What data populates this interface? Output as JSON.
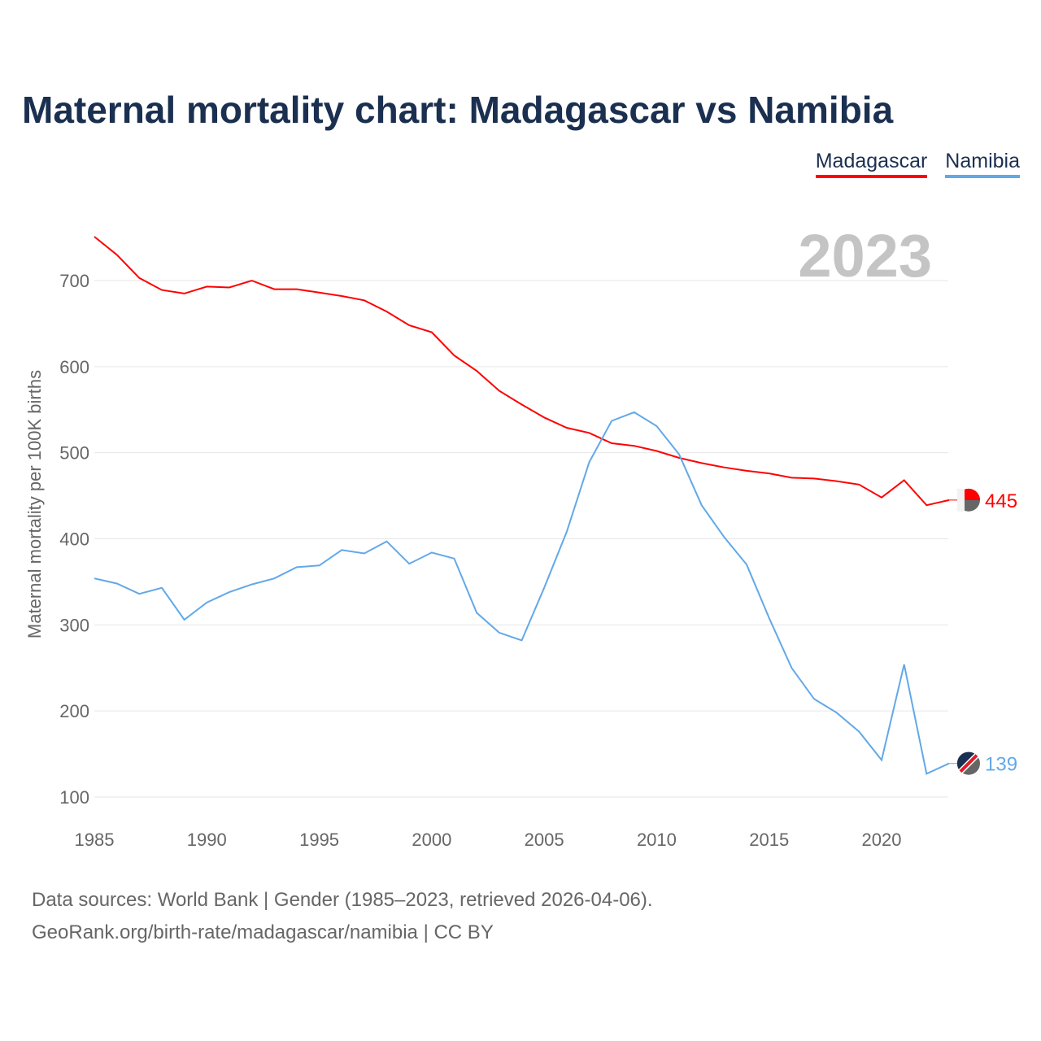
{
  "chart_data": {
    "type": "line",
    "title": "Maternal mortality chart: Madagascar vs Namibia",
    "ylabel": "Maternal mortality per 100K births",
    "xlabel": "",
    "year_label": "2023",
    "xlim": [
      1985,
      2023
    ],
    "ylim": [
      100,
      750
    ],
    "x_ticks": [
      1985,
      1990,
      1995,
      2000,
      2005,
      2010,
      2015,
      2020
    ],
    "y_ticks": [
      100,
      200,
      300,
      400,
      500,
      600,
      700
    ],
    "grid": true,
    "legend_position": "top-right",
    "x": [
      1985,
      1986,
      1987,
      1988,
      1989,
      1990,
      1991,
      1992,
      1993,
      1994,
      1995,
      1996,
      1997,
      1998,
      1999,
      2000,
      2001,
      2002,
      2003,
      2004,
      2005,
      2006,
      2007,
      2008,
      2009,
      2010,
      2011,
      2012,
      2013,
      2014,
      2015,
      2016,
      2017,
      2018,
      2019,
      2020,
      2021,
      2022,
      2023
    ],
    "series": [
      {
        "name": "Madagascar",
        "color": "#ff0000",
        "end_label": "445",
        "values": [
          751,
          730,
          703,
          689,
          685,
          693,
          692,
          700,
          690,
          690,
          686,
          682,
          677,
          664,
          648,
          640,
          613,
          595,
          572,
          556,
          541,
          529,
          523,
          511,
          508,
          502,
          494,
          488,
          483,
          479,
          476,
          471,
          470,
          467,
          463,
          448,
          468,
          439,
          445
        ]
      },
      {
        "name": "Namibia",
        "color": "#62a8e8",
        "end_label": "139",
        "values": [
          354,
          348,
          336,
          343,
          306,
          326,
          338,
          347,
          354,
          367,
          369,
          387,
          383,
          397,
          371,
          384,
          377,
          314,
          291,
          282,
          343,
          408,
          489,
          537,
          547,
          531,
          498,
          439,
          402,
          370,
          308,
          250,
          214,
          198,
          176,
          143,
          254,
          127,
          139
        ]
      }
    ]
  },
  "footer": {
    "line1": "Data sources: World Bank | Gender (1985–2023, retrieved 2026-04-06).",
    "line2": "GeoRank.org/birth-rate/madagascar/namibia | CC BY"
  }
}
